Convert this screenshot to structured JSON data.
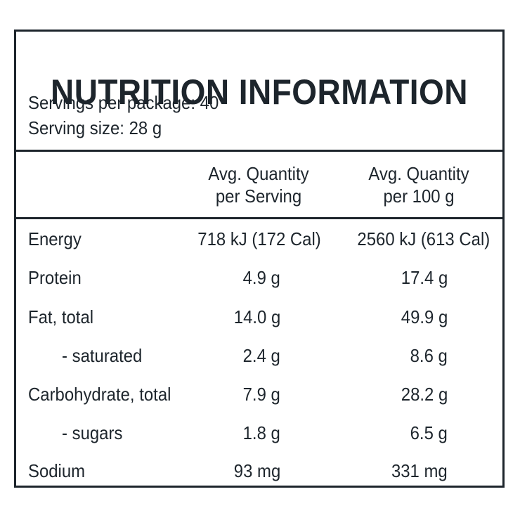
{
  "panel": {
    "title": "NUTRITION INFORMATION",
    "servings_per_package": "Servings per package: 40",
    "serving_size": "Serving size: 28 g"
  },
  "table": {
    "headers": [
      {
        "line1": "Avg. Quantity",
        "line2": "per Serving"
      },
      {
        "line1": "Avg. Quantity",
        "line2": "per 100 g"
      }
    ],
    "rows": [
      {
        "name": "Energy",
        "per_serving": "718 kJ (172 Cal)",
        "per_100g": "2560 kJ (613 Cal)"
      },
      {
        "name": "Protein",
        "per_serving": "4.9 g",
        "per_100g": "17.4 g"
      },
      {
        "name": "Fat, total",
        "per_serving": "14.0 g",
        "per_100g": "49.9 g"
      },
      {
        "name": "- saturated",
        "per_serving": "2.4 g",
        "per_100g": "8.6 g"
      },
      {
        "name": "Carbohydrate, total",
        "per_serving": "7.9 g",
        "per_100g": "28.2 g"
      },
      {
        "name": "- sugars",
        "per_serving": "1.8 g",
        "per_100g": "6.5 g"
      },
      {
        "name": "Sodium",
        "per_serving": "93 mg",
        "per_100g": "331 mg"
      }
    ]
  },
  "colors": {
    "ink": "#1d252c",
    "background": "#ffffff"
  }
}
